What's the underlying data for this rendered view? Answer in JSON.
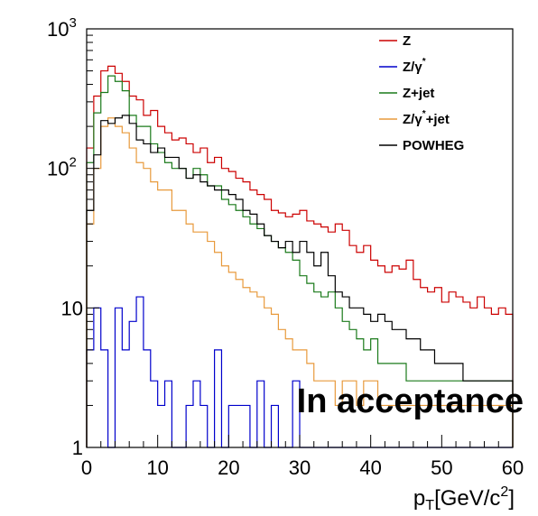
{
  "chart_data": {
    "type": "line",
    "step": true,
    "xlabel": {
      "main": "p",
      "sub": "T",
      "rest": "[GeV/c",
      "sup": "2",
      "end": "]"
    },
    "ylabel": "",
    "xlim": [
      0,
      60
    ],
    "ylim": [
      1,
      1000
    ],
    "ylog": true,
    "grid": false,
    "legend_position": "top-right",
    "annotation": "In acceptance",
    "x_tick_labels": [
      "0",
      "10",
      "20",
      "30",
      "40",
      "50",
      "60"
    ],
    "y_tick_labels": [
      {
        "value": 1,
        "base": "1",
        "exp": ""
      },
      {
        "value": 10,
        "base": "10",
        "exp": ""
      },
      {
        "value": 100,
        "base": "10",
        "exp": "2"
      },
      {
        "value": 1000,
        "base": "10",
        "exp": "3"
      }
    ],
    "bin_edges": [
      0,
      1,
      2,
      3,
      4,
      5,
      6,
      7,
      8,
      9,
      10,
      11,
      12,
      13,
      14,
      15,
      16,
      17,
      18,
      19,
      20,
      21,
      22,
      23,
      24,
      25,
      26,
      27,
      28,
      29,
      30,
      31,
      32,
      33,
      34,
      35,
      36,
      37,
      38,
      39,
      40,
      41,
      42,
      43,
      44,
      45,
      46,
      47,
      48,
      49,
      50,
      51,
      52,
      53,
      54,
      55,
      56,
      57,
      58,
      59,
      60
    ],
    "series": [
      {
        "name": "Z",
        "name_suffix": "",
        "color": "#cc0000",
        "values": [
          140,
          330,
          500,
          540,
          480,
          420,
          330,
          310,
          240,
          260,
          200,
          180,
          160,
          165,
          150,
          130,
          140,
          110,
          120,
          100,
          95,
          85,
          80,
          70,
          65,
          60,
          50,
          48,
          45,
          47,
          50,
          42,
          40,
          38,
          35,
          40,
          36,
          28,
          25,
          28,
          22,
          20,
          18,
          20,
          19,
          22,
          16,
          14,
          13,
          14,
          11,
          13,
          12,
          11,
          10,
          12,
          10,
          9,
          10,
          9
        ]
      },
      {
        "name": "Z/γ",
        "name_suffix": "*",
        "color": "#0000cc",
        "values": [
          5,
          10,
          5,
          1,
          10,
          5,
          8,
          12,
          5,
          3,
          2,
          3,
          1,
          1,
          2,
          3,
          2,
          1,
          5,
          1,
          2,
          2,
          2,
          1,
          3,
          1,
          2,
          1,
          1,
          3,
          1,
          1,
          1,
          1,
          1,
          1,
          1,
          1,
          1,
          1,
          1,
          1,
          1,
          1,
          1,
          1,
          1,
          1,
          1,
          1,
          1,
          1,
          1,
          1,
          1,
          1,
          1,
          1,
          1,
          1
        ]
      },
      {
        "name": "Z+jet",
        "name_suffix": "",
        "color": "#1a7a1a",
        "values": [
          110,
          250,
          350,
          460,
          420,
          360,
          240,
          200,
          200,
          150,
          130,
          110,
          100,
          100,
          85,
          100,
          90,
          75,
          75,
          60,
          55,
          50,
          45,
          40,
          37,
          33,
          30,
          27,
          25,
          22,
          17,
          15,
          13,
          12,
          13,
          10,
          8,
          7,
          6,
          5,
          6,
          4,
          4,
          4,
          4,
          3,
          3,
          3,
          3,
          3,
          3,
          3,
          3,
          3,
          3,
          3,
          3,
          3,
          3,
          3
        ]
      },
      {
        "name": "Z/γ",
        "name_suffix": "*+jet",
        "color": "#e89a3c",
        "values": [
          40,
          100,
          200,
          230,
          200,
          180,
          140,
          110,
          100,
          80,
          70,
          70,
          50,
          50,
          40,
          35,
          35,
          30,
          25,
          20,
          18,
          16,
          14,
          13,
          12,
          10,
          9,
          7,
          6,
          5,
          5,
          4,
          3,
          3,
          3,
          2,
          3,
          3,
          2,
          3,
          3,
          2,
          2,
          2,
          2,
          2,
          2,
          2,
          2,
          2,
          2,
          2,
          2,
          2,
          2,
          2,
          2,
          2,
          2,
          2
        ]
      },
      {
        "name": "POWHEG",
        "name_suffix": "",
        "color": "#000000",
        "values": [
          50,
          125,
          220,
          210,
          230,
          240,
          210,
          160,
          150,
          130,
          140,
          120,
          120,
          100,
          85,
          90,
          80,
          75,
          70,
          70,
          65,
          60,
          50,
          47,
          40,
          33,
          30,
          27,
          30,
          25,
          30,
          25,
          20,
          25,
          17,
          13,
          12,
          10,
          10,
          9,
          8,
          9,
          8,
          7,
          7,
          6,
          6,
          5,
          5,
          4,
          4,
          4,
          4,
          3,
          3,
          3,
          3,
          3,
          3,
          3
        ]
      }
    ]
  }
}
